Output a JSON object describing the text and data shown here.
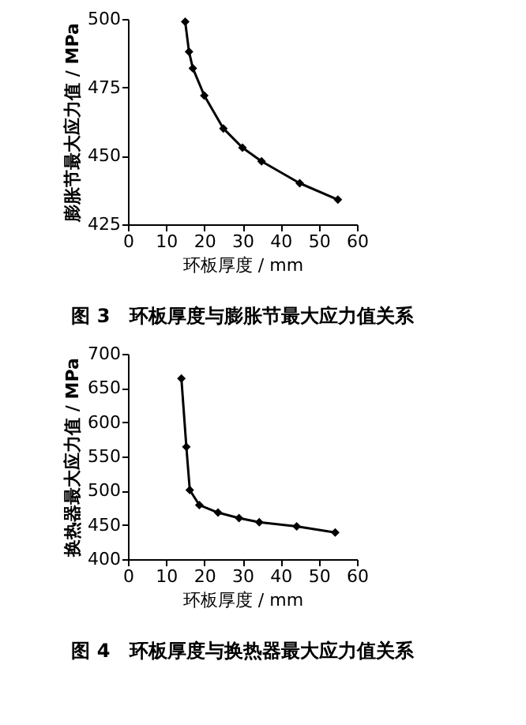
{
  "chart_data": [
    {
      "type": "line",
      "title": "图 3　环板厚度与膨胀节最大应力值关系",
      "xlabel": "环板厚度 / mm",
      "ylabel": "膨胀节最大应力值 / MPa",
      "x": [
        15,
        16,
        17,
        20,
        25,
        30,
        35,
        45,
        55
      ],
      "values": [
        499,
        488,
        482,
        472,
        460,
        453,
        448,
        440,
        434
      ],
      "color": "#000000",
      "marker": "diamond",
      "line_style": "solid",
      "grid": false,
      "legend": false,
      "xlim": [
        0,
        60
      ],
      "xticks": [
        0,
        10,
        20,
        30,
        40,
        50,
        60
      ],
      "ylim": [
        425,
        500
      ],
      "yticks": [
        425,
        450,
        475,
        500
      ]
    },
    {
      "type": "line",
      "title": "图 4　环板厚度与换热器最大应力值关系",
      "xlabel": "环板厚度 / mm",
      "ylabel": "换热器最大应力值 / MPa",
      "x": [
        14,
        15.3,
        16.2,
        18.7,
        23.6,
        29.1,
        34.4,
        44.2,
        54.3
      ],
      "values": [
        664,
        564,
        501,
        479,
        468,
        460,
        454,
        448,
        439
      ],
      "color": "#000000",
      "marker": "diamond",
      "line_style": "solid",
      "grid": false,
      "legend": false,
      "xlim": [
        0,
        60
      ],
      "xticks": [
        0,
        10,
        20,
        30,
        40,
        50,
        60
      ],
      "ylim": [
        400,
        700
      ],
      "yticks": [
        400,
        450,
        500,
        550,
        600,
        650,
        700
      ]
    }
  ]
}
